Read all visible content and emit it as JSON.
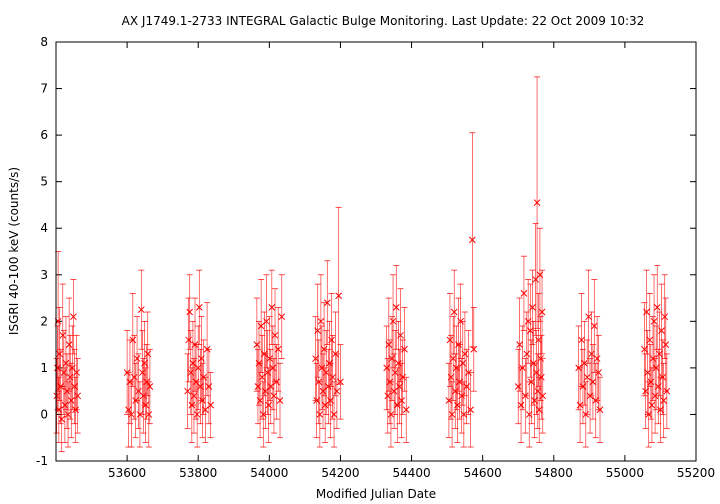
{
  "chart_data": {
    "type": "scatter",
    "title": "AX J1749.1-2733    INTEGRAL Galactic Bulge Monitoring.  Last Update: 22 Oct 2009 10:32",
    "xlabel": "Modified Julian Date",
    "ylabel": "ISGRI 40-100 keV (counts/s)",
    "xlim": [
      53400,
      55200
    ],
    "ylim": [
      -1,
      8
    ],
    "xticks": [
      53600,
      53800,
      54000,
      54200,
      54400,
      54600,
      54800,
      55000,
      55200
    ],
    "yticks": [
      -1,
      0,
      1,
      2,
      3,
      4,
      5,
      6,
      7,
      8
    ],
    "grid": false,
    "legend": "none",
    "marker": "x",
    "error_bars": true,
    "color": "#ff0000",
    "points": [
      [
        53402,
        0.4,
        0.8
      ],
      [
        53404,
        1.0,
        0.9
      ],
      [
        53406,
        2.0,
        1.5
      ],
      [
        53408,
        0.1,
        0.7
      ],
      [
        53410,
        1.3,
        1.0
      ],
      [
        53413,
        0.6,
        0.8
      ],
      [
        53416,
        -0.1,
        0.7
      ],
      [
        53419,
        1.7,
        1.1
      ],
      [
        53422,
        0.9,
        0.9
      ],
      [
        53425,
        0.2,
        0.8
      ],
      [
        53428,
        1.1,
        1.0
      ],
      [
        53431,
        0.5,
        0.8
      ],
      [
        53434,
        0.0,
        0.7
      ],
      [
        53437,
        1.5,
        1.0
      ],
      [
        53440,
        0.8,
        0.9
      ],
      [
        53443,
        0.3,
        0.8
      ],
      [
        53446,
        1.0,
        0.9
      ],
      [
        53449,
        2.1,
        0.8
      ],
      [
        53452,
        0.6,
        0.8
      ],
      [
        53455,
        0.1,
        0.7
      ],
      [
        53458,
        0.9,
        0.8
      ],
      [
        53461,
        0.4,
        0.8
      ],
      [
        53600,
        0.9,
        0.9
      ],
      [
        53604,
        0.1,
        0.8
      ],
      [
        53608,
        0.7,
        0.9
      ],
      [
        53612,
        0.0,
        0.7
      ],
      [
        53616,
        1.6,
        1.0
      ],
      [
        53620,
        0.8,
        0.9
      ],
      [
        53624,
        0.3,
        0.8
      ],
      [
        53628,
        1.2,
        0.9
      ],
      [
        53632,
        0.5,
        0.8
      ],
      [
        53636,
        0.0,
        0.7
      ],
      [
        53640,
        2.25,
        0.85
      ],
      [
        53643,
        0.9,
        0.9
      ],
      [
        53646,
        0.4,
        0.8
      ],
      [
        53649,
        1.1,
        0.9
      ],
      [
        53652,
        0.2,
        0.8
      ],
      [
        53655,
        0.7,
        0.8
      ],
      [
        53658,
        1.3,
        0.9
      ],
      [
        53661,
        0.0,
        0.7
      ],
      [
        53664,
        0.6,
        0.8
      ],
      [
        53770,
        0.5,
        0.8
      ],
      [
        53773,
        1.6,
        0.9
      ],
      [
        53776,
        2.2,
        0.8
      ],
      [
        53779,
        0.9,
        0.9
      ],
      [
        53782,
        0.2,
        0.8
      ],
      [
        53785,
        1.1,
        0.9
      ],
      [
        53788,
        0.4,
        0.8
      ],
      [
        53791,
        1.5,
        1.0
      ],
      [
        53794,
        0.7,
        0.8
      ],
      [
        53797,
        0.0,
        0.7
      ],
      [
        53800,
        1.0,
        0.9
      ],
      [
        53803,
        2.3,
        0.8
      ],
      [
        53806,
        0.6,
        0.8
      ],
      [
        53809,
        1.2,
        0.9
      ],
      [
        53812,
        0.3,
        0.8
      ],
      [
        53815,
        0.8,
        0.8
      ],
      [
        53820,
        0.1,
        0.7
      ],
      [
        53825,
        1.4,
        1.0
      ],
      [
        53830,
        0.6,
        0.8
      ],
      [
        53835,
        0.2,
        0.7
      ],
      [
        53965,
        1.5,
        1.0
      ],
      [
        53968,
        0.6,
        0.8
      ],
      [
        53971,
        1.1,
        0.9
      ],
      [
        53974,
        0.3,
        0.8
      ],
      [
        53977,
        1.9,
        1.0
      ],
      [
        53980,
        0.8,
        0.9
      ],
      [
        53983,
        0.0,
        0.7
      ],
      [
        53986,
        1.3,
        0.9
      ],
      [
        53989,
        0.5,
        0.8
      ],
      [
        53992,
        2.0,
        1.0
      ],
      [
        53995,
        0.9,
        0.9
      ],
      [
        53998,
        0.2,
        0.8
      ],
      [
        54001,
        1.2,
        0.9
      ],
      [
        54004,
        0.6,
        0.8
      ],
      [
        54007,
        2.3,
        0.8
      ],
      [
        54010,
        1.0,
        0.9
      ],
      [
        54013,
        0.4,
        0.8
      ],
      [
        54016,
        1.7,
        1.0
      ],
      [
        54020,
        0.7,
        0.8
      ],
      [
        54025,
        1.4,
        0.9
      ],
      [
        54030,
        0.3,
        0.8
      ],
      [
        54035,
        2.1,
        0.9
      ],
      [
        54130,
        1.2,
        0.9
      ],
      [
        54133,
        0.3,
        0.8
      ],
      [
        54136,
        1.8,
        1.0
      ],
      [
        54139,
        0.7,
        0.9
      ],
      [
        54142,
        0.0,
        0.7
      ],
      [
        54145,
        2.0,
        1.0
      ],
      [
        54148,
        1.0,
        0.9
      ],
      [
        54151,
        0.5,
        0.8
      ],
      [
        54154,
        1.4,
        1.0
      ],
      [
        54157,
        0.2,
        0.8
      ],
      [
        54160,
        0.9,
        0.9
      ],
      [
        54163,
        2.4,
        0.9
      ],
      [
        54166,
        0.6,
        0.8
      ],
      [
        54169,
        1.1,
        0.9
      ],
      [
        54172,
        0.3,
        0.8
      ],
      [
        54175,
        1.6,
        1.0
      ],
      [
        54178,
        0.8,
        0.9
      ],
      [
        54182,
        0.0,
        0.7
      ],
      [
        54186,
        1.3,
        0.9
      ],
      [
        54190,
        0.5,
        0.8
      ],
      [
        54195,
        2.55,
        1.9
      ],
      [
        54200,
        0.7,
        0.8
      ],
      [
        54330,
        1.0,
        0.9
      ],
      [
        54333,
        0.4,
        0.8
      ],
      [
        54336,
        1.5,
        1.0
      ],
      [
        54339,
        0.7,
        0.9
      ],
      [
        54342,
        0.0,
        0.7
      ],
      [
        54345,
        1.2,
        0.9
      ],
      [
        54348,
        2.0,
        1.0
      ],
      [
        54351,
        0.5,
        0.8
      ],
      [
        54354,
        0.9,
        0.9
      ],
      [
        54357,
        2.3,
        0.9
      ],
      [
        54360,
        0.2,
        0.8
      ],
      [
        54363,
        1.1,
        0.9
      ],
      [
        54366,
        0.6,
        0.8
      ],
      [
        54369,
        1.7,
        1.0
      ],
      [
        54372,
        0.3,
        0.8
      ],
      [
        54375,
        0.8,
        0.8
      ],
      [
        54380,
        1.4,
        0.9
      ],
      [
        54385,
        0.1,
        0.7
      ],
      [
        54505,
        0.3,
        0.8
      ],
      [
        54508,
        1.6,
        1.0
      ],
      [
        54511,
        0.8,
        0.9
      ],
      [
        54514,
        0.0,
        0.7
      ],
      [
        54517,
        1.2,
        0.9
      ],
      [
        54520,
        2.2,
        0.9
      ],
      [
        54523,
        0.5,
        0.8
      ],
      [
        54526,
        1.0,
        0.9
      ],
      [
        54529,
        0.2,
        0.8
      ],
      [
        54532,
        1.5,
        1.0
      ],
      [
        54535,
        0.7,
        0.8
      ],
      [
        54538,
        2.0,
        0.8
      ],
      [
        54541,
        0.4,
        0.8
      ],
      [
        54544,
        1.1,
        0.9
      ],
      [
        54547,
        0.0,
        0.7
      ],
      [
        54550,
        1.3,
        0.9
      ],
      [
        54555,
        0.6,
        0.8
      ],
      [
        54560,
        0.9,
        0.9
      ],
      [
        54566,
        0.1,
        0.8
      ],
      [
        54571,
        3.75,
        2.3
      ],
      [
        54575,
        1.4,
        0.9
      ],
      [
        54700,
        0.6,
        0.8
      ],
      [
        54704,
        1.5,
        1.0
      ],
      [
        54708,
        0.2,
        0.8
      ],
      [
        54712,
        1.0,
        0.9
      ],
      [
        54716,
        2.6,
        0.8
      ],
      [
        54720,
        0.4,
        0.8
      ],
      [
        54724,
        1.3,
        0.9
      ],
      [
        54728,
        2.0,
        0.9
      ],
      [
        54731,
        0.0,
        0.7
      ],
      [
        54734,
        1.8,
        1.0
      ],
      [
        54737,
        0.7,
        0.9
      ],
      [
        54740,
        2.3,
        0.8
      ],
      [
        54743,
        1.1,
        0.9
      ],
      [
        54746,
        0.3,
        0.8
      ],
      [
        54749,
        2.9,
        1.2
      ],
      [
        54751,
        0.9,
        0.9
      ],
      [
        54753,
        4.55,
        2.7
      ],
      [
        54755,
        0.5,
        0.8
      ],
      [
        54757,
        1.6,
        1.0
      ],
      [
        54759,
        0.1,
        0.7
      ],
      [
        54761,
        3.0,
        1.0
      ],
      [
        54763,
        1.2,
        0.9
      ],
      [
        54765,
        0.8,
        0.9
      ],
      [
        54767,
        2.2,
        0.9
      ],
      [
        54769,
        0.4,
        0.8
      ],
      [
        54870,
        1.0,
        0.9
      ],
      [
        54874,
        0.2,
        0.8
      ],
      [
        54878,
        1.6,
        1.0
      ],
      [
        54882,
        0.6,
        0.8
      ],
      [
        54886,
        1.1,
        0.9
      ],
      [
        54890,
        0.0,
        0.7
      ],
      [
        54894,
        0.8,
        0.8
      ],
      [
        54898,
        2.1,
        1.0
      ],
      [
        54902,
        0.4,
        0.8
      ],
      [
        54906,
        1.3,
        0.9
      ],
      [
        54910,
        0.7,
        0.8
      ],
      [
        54914,
        1.9,
        1.0
      ],
      [
        54918,
        0.3,
        0.8
      ],
      [
        54922,
        1.2,
        0.9
      ],
      [
        54926,
        0.9,
        0.8
      ],
      [
        54930,
        0.1,
        0.7
      ],
      [
        55055,
        1.4,
        1.0
      ],
      [
        55058,
        0.5,
        0.8
      ],
      [
        55061,
        2.2,
        0.9
      ],
      [
        55064,
        0.9,
        0.9
      ],
      [
        55067,
        0.0,
        0.7
      ],
      [
        55070,
        1.6,
        1.0
      ],
      [
        55073,
        0.7,
        0.8
      ],
      [
        55076,
        0.2,
        0.8
      ],
      [
        55079,
        1.2,
        0.9
      ],
      [
        55082,
        2.0,
        1.0
      ],
      [
        55085,
        0.4,
        0.8
      ],
      [
        55088,
        1.0,
        0.9
      ],
      [
        55091,
        2.3,
        0.9
      ],
      [
        55094,
        0.6,
        0.8
      ],
      [
        55097,
        1.3,
        0.9
      ],
      [
        55100,
        0.1,
        0.7
      ],
      [
        55103,
        1.8,
        1.0
      ],
      [
        55106,
        0.8,
        0.8
      ],
      [
        55109,
        0.3,
        0.8
      ],
      [
        55112,
        2.1,
        0.9
      ],
      [
        55115,
        1.5,
        1.0
      ],
      [
        55118,
        0.5,
        0.8
      ]
    ]
  }
}
